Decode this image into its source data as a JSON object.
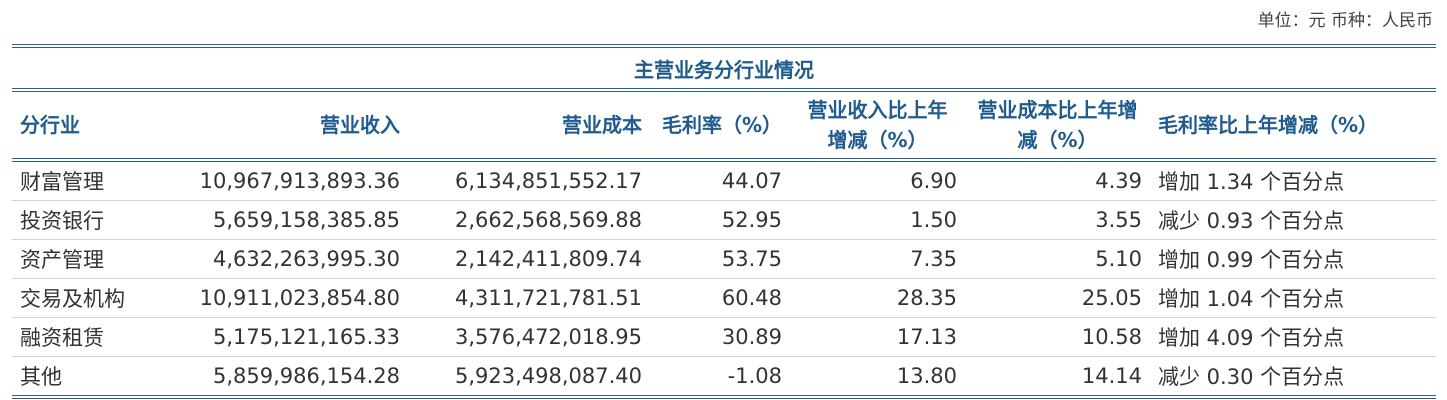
{
  "unit_label": "单位：元  币种：人民币",
  "table": {
    "title": "主营业务分行业情况",
    "headers": [
      "分行业",
      "营业收入",
      "营业成本",
      "毛利率（%）",
      "营业收入比上年增减（%）",
      "营业成本比上年增减（%）",
      "毛利率比上年增减（%）"
    ],
    "rows": [
      [
        "财富管理",
        "10,967,913,893.36",
        "6,134,851,552.17",
        "44.07",
        "6.90",
        "4.39",
        "增加 1.34 个百分点"
      ],
      [
        "投资银行",
        "5,659,158,385.85",
        "2,662,568,569.88",
        "52.95",
        "1.50",
        "3.55",
        "减少 0.93 个百分点"
      ],
      [
        "资产管理",
        "4,632,263,995.30",
        "2,142,411,809.74",
        "53.75",
        "7.35",
        "5.10",
        "增加 0.99 个百分点"
      ],
      [
        "交易及机构",
        "10,911,023,854.80",
        "4,311,721,781.51",
        "60.48",
        "28.35",
        "25.05",
        "增加 1.04 个百分点"
      ],
      [
        "融资租赁",
        "5,175,121,165.33",
        "3,576,472,018.95",
        "30.89",
        "17.13",
        "10.58",
        "增加 4.09 个百分点"
      ],
      [
        "其他",
        "5,859,986,154.28",
        "5,923,498,087.40",
        "-1.08",
        "13.80",
        "14.14",
        "减少 0.30 个百分点"
      ]
    ]
  }
}
